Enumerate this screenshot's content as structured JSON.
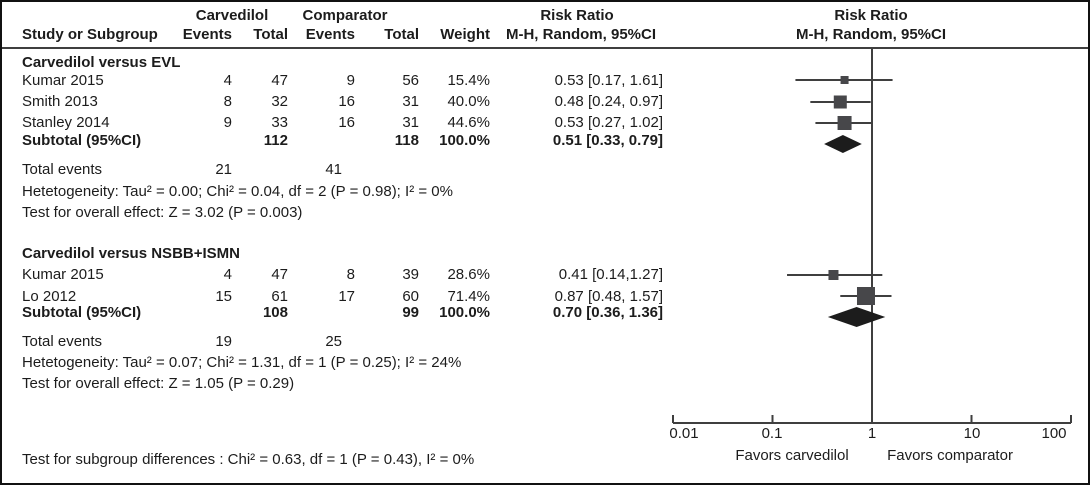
{
  "header": {
    "group_carvedilol": "Carvedilol",
    "group_comparator": "Comparator",
    "study": "Study or Subgroup",
    "events_c": "Events",
    "total_c": "Total",
    "events_x": "Events",
    "total_x": "Total",
    "weight": "Weight",
    "rr_left_line1": "Risk Ratio",
    "rr_left_line2": "M-H, Random, 95%CI",
    "rr_right_line1": "Risk Ratio",
    "rr_right_line2": "M-H, Random, 95%CI"
  },
  "groups": [
    {
      "title": "Carvedilol versus EVL",
      "rows": [
        {
          "study": "Kumar 2015",
          "e1": "4",
          "t1": "47",
          "e2": "9",
          "t2": "56",
          "weight": "15.4%",
          "ci": "0.53 [0.17, 1.61]"
        },
        {
          "study": "Smith 2013",
          "e1": "8",
          "t1": "32",
          "e2": "16",
          "t2": "31",
          "weight": "40.0%",
          "ci": "0.48 [0.24, 0.97]"
        },
        {
          "study": "Stanley 2014",
          "e1": "9",
          "t1": "33",
          "e2": "16",
          "t2": "31",
          "weight": "44.6%",
          "ci": "0.53 [0.27, 1.02]"
        }
      ],
      "subtotal": {
        "label": "Subtotal (95%CI)",
        "t1": "112",
        "t2": "118",
        "weight": "100.0%",
        "ci": "0.51 [0.33, 0.79]"
      },
      "total_events_label": "Total events",
      "total_events_c": "21",
      "total_events_x": "41",
      "heterogeneity": "Hetetogeneity: Tau² = 0.00; Chi² = 0.04, df = 2 (P = 0.98); I² = 0%",
      "overall_effect": "Test for overall effect: Z = 3.02 (P = 0.003)"
    },
    {
      "title": "Carvedilol versus NSBB+ISMN",
      "rows": [
        {
          "study": "Kumar 2015",
          "e1": "4",
          "t1": "47",
          "e2": "8",
          "t2": "39",
          "weight": "28.6%",
          "ci": "0.41 [0.14,1.27]"
        },
        {
          "study": "Lo 2012",
          "e1": "15",
          "t1": "61",
          "e2": "17",
          "t2": "60",
          "weight": "71.4%",
          "ci": "0.87 [0.48, 1.57]"
        }
      ],
      "subtotal": {
        "label": "Subtotal (95%CI)",
        "t1": "108",
        "t2": "99",
        "weight": "100.0%",
        "ci": "0.70 [0.36, 1.36]"
      },
      "total_events_label": "Total events",
      "total_events_c": "19",
      "total_events_x": "25",
      "heterogeneity": "Hetetogeneity: Tau² = 0.07; Chi² = 1.31, df = 1 (P = 0.25); I² = 24%",
      "overall_effect": "Test for overall effect: Z = 1.05 (P = 0.29)"
    }
  ],
  "footer": {
    "subgroup_test": "Test for subgroup differences : Chi² = 0.63, df = 1 (P = 0.43), I² = 0%"
  },
  "axis": {
    "ticks": [
      "0.01",
      "0.1",
      "1",
      "10",
      "100"
    ],
    "favors_left": "Favors carvedilol",
    "favors_right": "Favors comparator"
  },
  "colors": {
    "marker_square": "#47474a",
    "ci_line": "#3f3f3f",
    "diamond": "#1c1c1c",
    "axis": "#3f3f3f"
  },
  "chart_data": {
    "type": "scatter",
    "subtype": "forest-plot",
    "x_scale": "log10",
    "x_ticks": [
      0.01,
      0.1,
      1,
      10,
      100
    ],
    "null_line": 1,
    "xlabel_left": "Favors carvedilol",
    "xlabel_right": "Favors comparator",
    "effect_measure": "Risk Ratio, M-H, Random, 95%CI",
    "groups": [
      {
        "name": "Carvedilol versus EVL",
        "studies": [
          {
            "label": "Kumar 2015",
            "rr": 0.53,
            "ci_low": 0.17,
            "ci_high": 1.61,
            "weight_pct": 15.4
          },
          {
            "label": "Smith 2013",
            "rr": 0.48,
            "ci_low": 0.24,
            "ci_high": 0.97,
            "weight_pct": 40.0
          },
          {
            "label": "Stanley 2014",
            "rr": 0.53,
            "ci_low": 0.27,
            "ci_high": 1.02,
            "weight_pct": 44.6
          }
        ],
        "subtotal": {
          "rr": 0.51,
          "ci_low": 0.33,
          "ci_high": 0.79
        }
      },
      {
        "name": "Carvedilol versus NSBB+ISMN",
        "studies": [
          {
            "label": "Kumar 2015",
            "rr": 0.41,
            "ci_low": 0.14,
            "ci_high": 1.27,
            "weight_pct": 28.6
          },
          {
            "label": "Lo 2012",
            "rr": 0.87,
            "ci_low": 0.48,
            "ci_high": 1.57,
            "weight_pct": 71.4
          }
        ],
        "subtotal": {
          "rr": 0.7,
          "ci_low": 0.36,
          "ci_high": 1.36
        }
      }
    ]
  }
}
